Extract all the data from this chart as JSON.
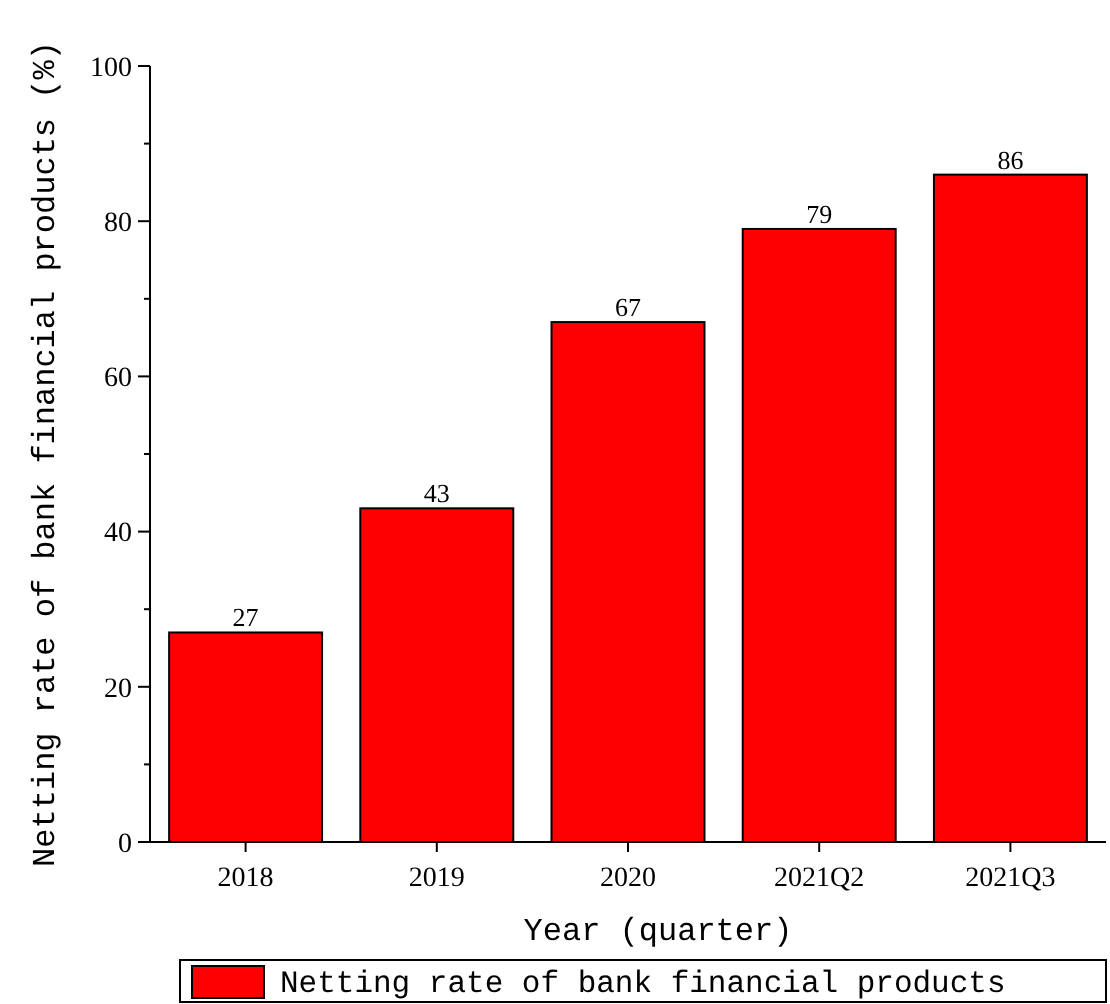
{
  "chart_data": {
    "type": "bar",
    "xlabel": "Year (quarter)",
    "ylabel": "Netting rate of bank financial products (%)",
    "categories": [
      "2018",
      "2019",
      "2020",
      "2021Q2",
      "2021Q3"
    ],
    "series": [
      {
        "name": "Netting rate of bank financial products",
        "color": "#ff0000",
        "values": [
          27,
          43,
          67,
          79,
          86
        ]
      }
    ],
    "ylim": [
      0,
      100
    ],
    "yticks": [
      0,
      {
        "value": 10,
        "label": null
      },
      20,
      {
        "value": 30,
        "label": null
      },
      40,
      {
        "value": 50,
        "label": null
      },
      60,
      {
        "value": 70,
        "label": null
      },
      80,
      {
        "value": 90,
        "label": null
      },
      100
    ],
    "data_labels": true,
    "legend": "bottom",
    "grid": false
  }
}
